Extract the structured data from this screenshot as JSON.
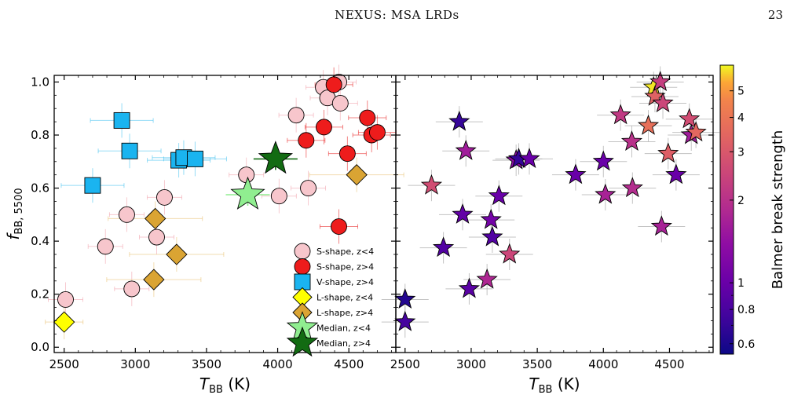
{
  "header": {
    "running_title": "NEXUS: MSA LRDs",
    "page_number": "23"
  },
  "chart_data": {
    "type": "scatter",
    "panels": [
      {
        "xlabel": "T_BB (K)",
        "ylabel": "f_BB, 5500",
        "xlim": [
          2430,
          4830
        ],
        "ylim": [
          -0.02,
          1.025
        ],
        "xticks": [
          2500,
          3000,
          3500,
          4000,
          4500
        ],
        "yticks": [
          0.0,
          0.2,
          0.4,
          0.6,
          0.8,
          1.0
        ],
        "legend_position": "lower-right",
        "series": [
          {
            "name": "S-shape, z<4",
            "marker": "circle",
            "color": "#f7c6cc",
            "points": [
              [
                2510,
                0.18
              ],
              [
                2790,
                0.38
              ],
              [
                2940,
                0.5
              ],
              [
                2975,
                0.22
              ],
              [
                3150,
                0.415
              ],
              [
                3205,
                0.565
              ],
              [
                3780,
                0.65
              ],
              [
                4010,
                0.57
              ],
              [
                4130,
                0.875
              ],
              [
                4215,
                0.6
              ],
              [
                4320,
                0.98
              ],
              [
                4350,
                0.94
              ],
              [
                4430,
                1.0
              ],
              [
                4440,
                0.92
              ]
            ]
          },
          {
            "name": "S-shape, z>4",
            "marker": "circle",
            "color": "#ee1c1c",
            "points": [
              [
                4200,
                0.78
              ],
              [
                4325,
                0.83
              ],
              [
                4395,
                0.99
              ],
              [
                4430,
                0.455
              ],
              [
                4490,
                0.73
              ],
              [
                4630,
                0.865
              ],
              [
                4660,
                0.8
              ],
              [
                4700,
                0.81
              ]
            ]
          },
          {
            "name": "V-shape, z>4",
            "marker": "square",
            "color": "#1ab4f0",
            "points": [
              [
                2700,
                0.61
              ],
              [
                2905,
                0.855
              ],
              [
                2960,
                0.74
              ],
              [
                3305,
                0.705
              ],
              [
                3340,
                0.715
              ],
              [
                3420,
                0.71
              ]
            ]
          },
          {
            "name": "L-shape, z<4",
            "marker": "diamond",
            "color": "#ffff00",
            "points": [
              [
                2500,
                0.095
              ]
            ]
          },
          {
            "name": "L-shape, z>4",
            "marker": "diamond",
            "color": "#daa433",
            "points": [
              [
                3130,
                0.255
              ],
              [
                3140,
                0.485
              ],
              [
                3290,
                0.35
              ],
              [
                4555,
                0.65
              ]
            ]
          },
          {
            "name": "Median, z<4",
            "marker": "star",
            "color": "#90ee90",
            "points": [
              [
                3790,
                0.575
              ]
            ]
          },
          {
            "name": "Median, z>4",
            "marker": "star",
            "color": "#126b12",
            "points": [
              [
                3985,
                0.71
              ]
            ]
          }
        ],
        "legend": [
          "S-shape, z<4",
          "S-shape, z>4",
          "V-shape, z>4",
          "L-shape, z<4",
          "L-shape, z>4",
          "Median, z<4",
          "Median, z>4"
        ]
      },
      {
        "xlabel": "T_BB (K)",
        "xlim": [
          2430,
          4830
        ],
        "ylim": [
          -0.02,
          1.025
        ],
        "xticks": [
          2500,
          3000,
          3500,
          4000,
          4500
        ],
        "color_by": "Balmer break strength",
        "colormap": "plasma",
        "colorbar": {
          "label": "Balmer break strength",
          "scale": "log",
          "range": [
            0.55,
            6.2
          ],
          "ticks": [
            0.6,
            0.8,
            1,
            2,
            3,
            4,
            5
          ]
        },
        "points": [
          [
            2500,
            0.18,
            0.63
          ],
          [
            2500,
            0.095,
            0.78
          ],
          [
            2700,
            0.61,
            2.7
          ],
          [
            2790,
            0.375,
            0.85
          ],
          [
            2910,
            0.85,
            0.7
          ],
          [
            2935,
            0.5,
            0.95
          ],
          [
            2960,
            0.74,
            1.6
          ],
          [
            2985,
            0.22,
            0.9
          ],
          [
            3150,
            0.48,
            1.1
          ],
          [
            3160,
            0.415,
            0.85
          ],
          [
            3210,
            0.57,
            1.0
          ],
          [
            3120,
            0.255,
            1.8
          ],
          [
            3290,
            0.35,
            2.5
          ],
          [
            3340,
            0.705,
            1.35
          ],
          [
            3360,
            0.71,
            0.7
          ],
          [
            3440,
            0.71,
            1.0
          ],
          [
            3790,
            0.65,
            1.0
          ],
          [
            4000,
            0.7,
            1.0
          ],
          [
            4015,
            0.575,
            1.7
          ],
          [
            4130,
            0.875,
            2.2
          ],
          [
            4215,
            0.775,
            2.0
          ],
          [
            4220,
            0.6,
            1.9
          ],
          [
            4340,
            0.835,
            3.8
          ],
          [
            4380,
            0.98,
            6.0
          ],
          [
            4390,
            0.945,
            3.3
          ],
          [
            4430,
            1.0,
            2.3
          ],
          [
            4440,
            0.455,
            1.7
          ],
          [
            4450,
            0.92,
            2.5
          ],
          [
            4490,
            0.73,
            3.2
          ],
          [
            4550,
            0.65,
            1.0
          ],
          [
            4650,
            0.86,
            2.7
          ],
          [
            4665,
            0.8,
            1.6
          ],
          [
            4700,
            0.81,
            3.5
          ]
        ]
      }
    ]
  }
}
